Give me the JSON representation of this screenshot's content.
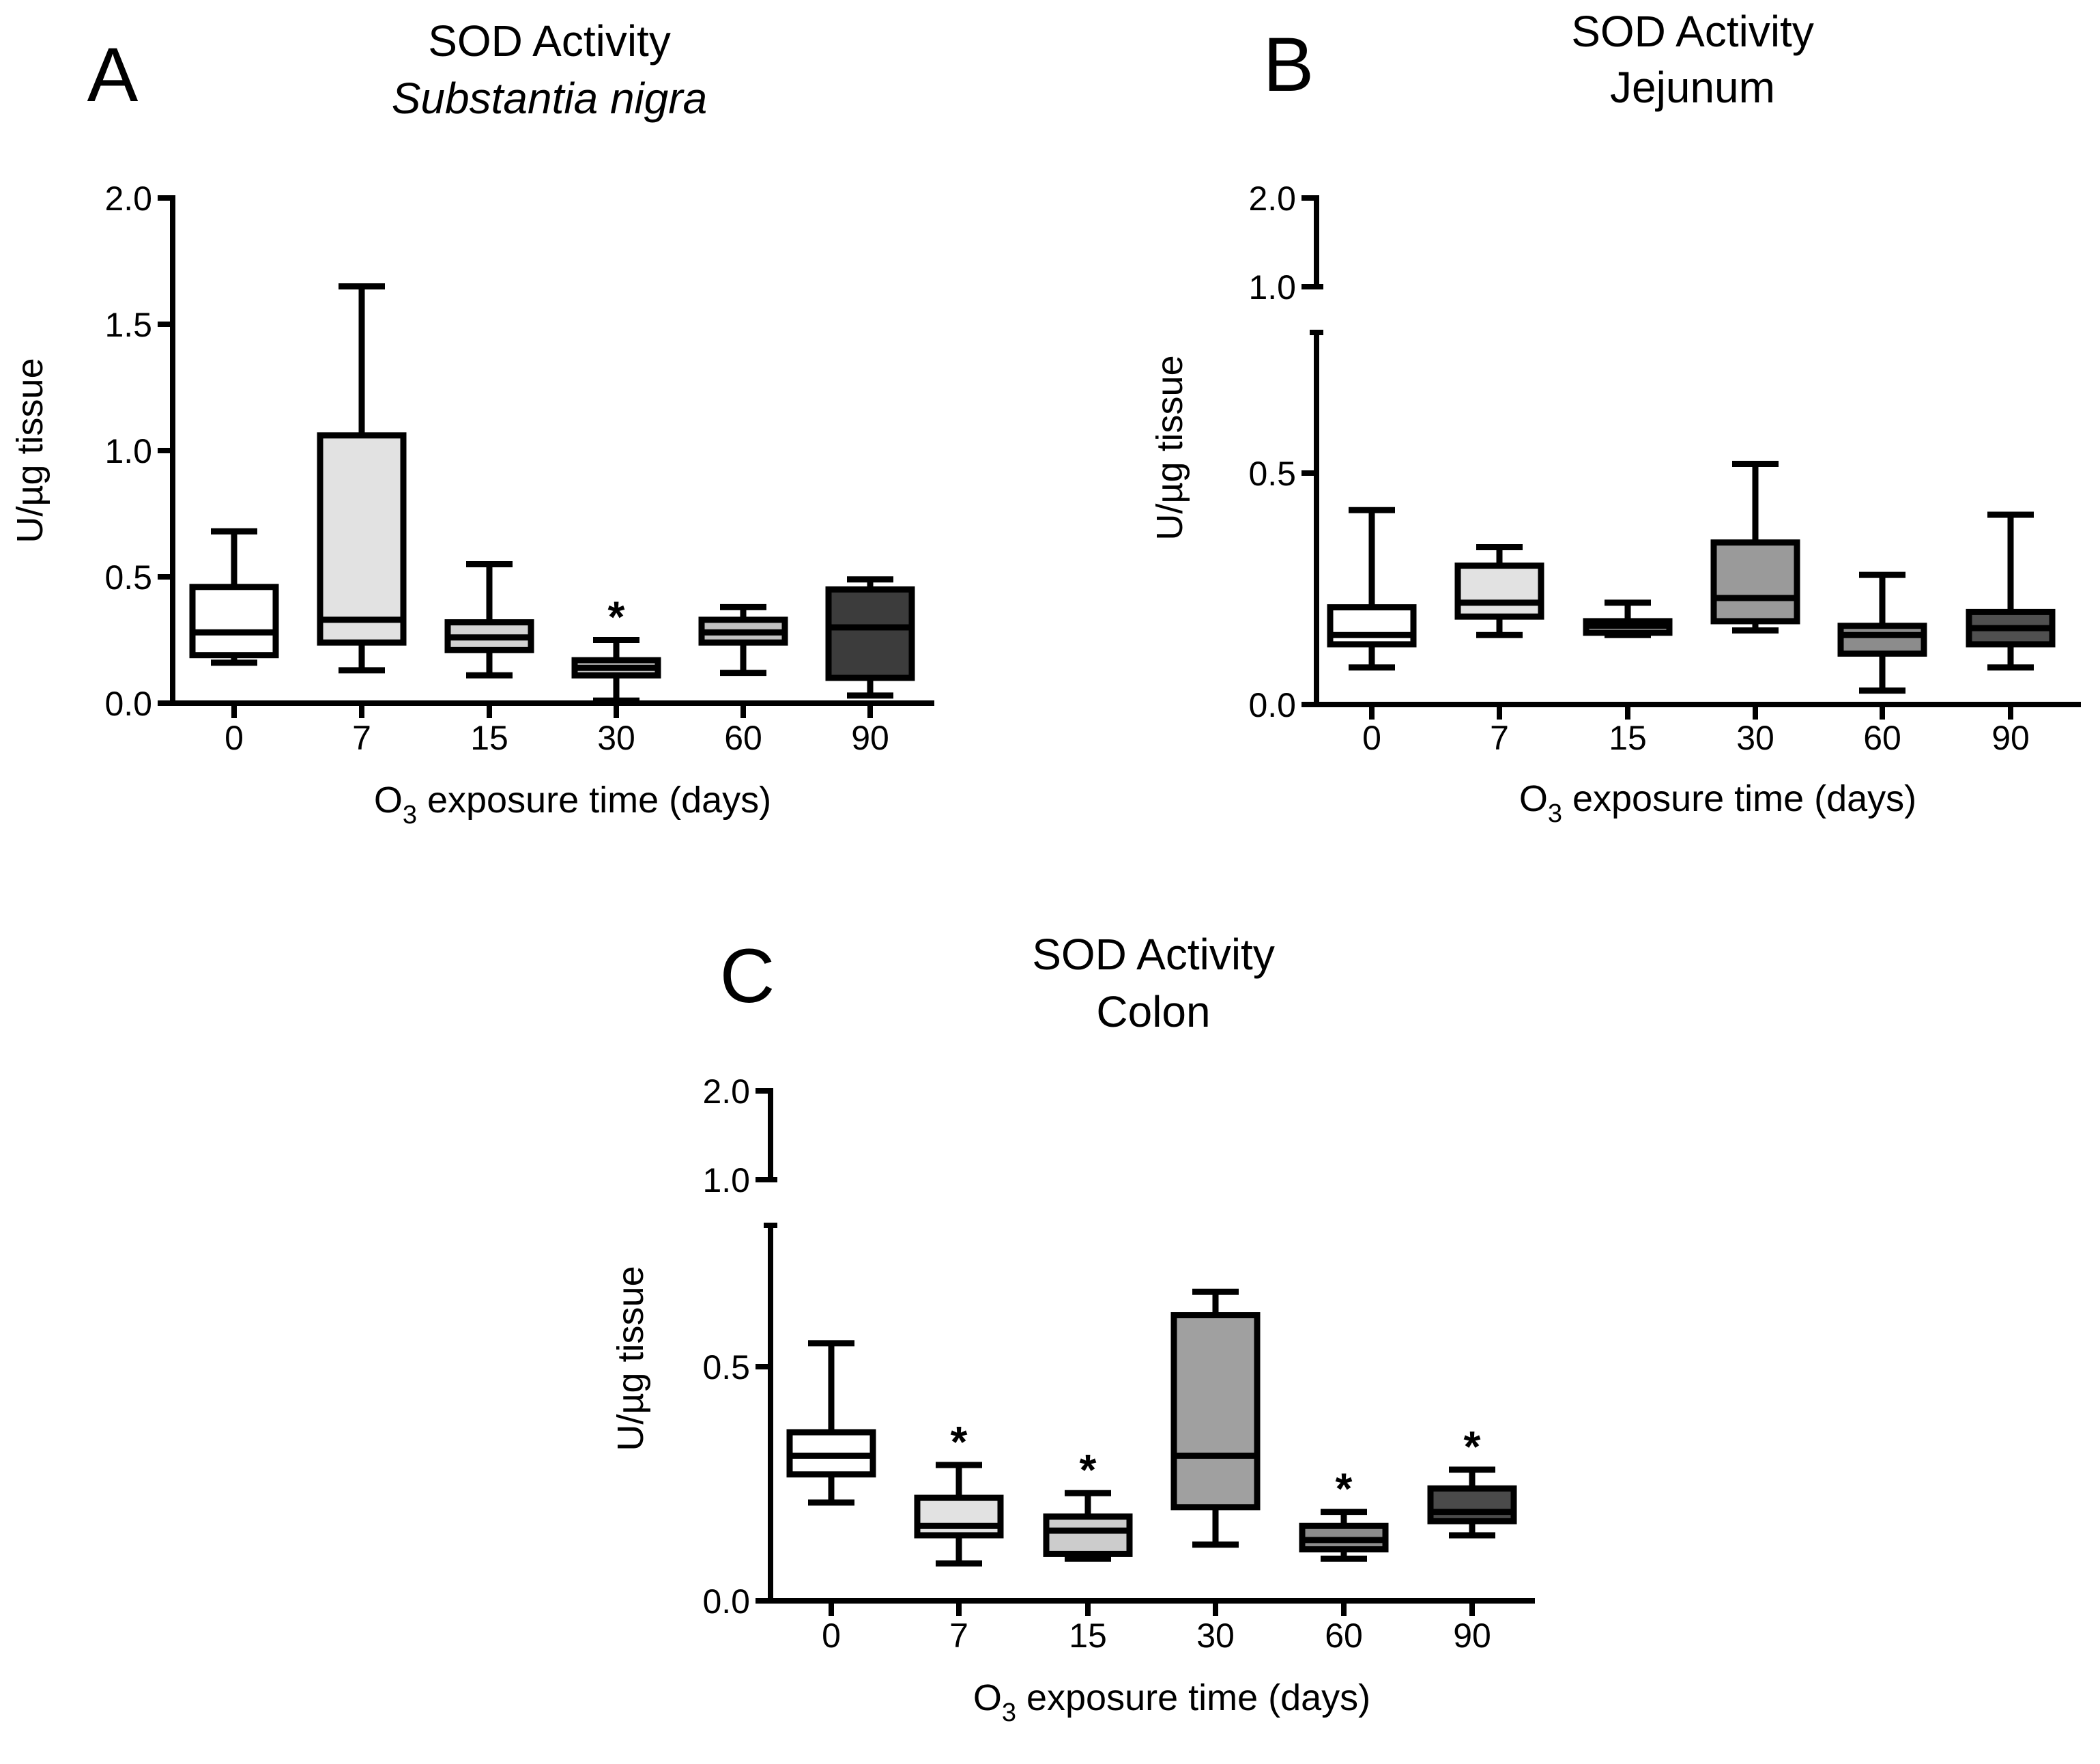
{
  "chart_data": [
    {
      "type": "box",
      "panel_label": "A",
      "title": "SOD Activity",
      "subtitle": "Substantia nigra",
      "subtitle_italic": true,
      "ylabel": "U/µg tissue",
      "xlabel_prefix": "O",
      "xlabel_sub": "3",
      "xlabel_suffix": " exposure time (days)",
      "categories": [
        "0",
        "7",
        "15",
        "30",
        "60",
        "90"
      ],
      "ylim": [
        0,
        2.0
      ],
      "yticks": [
        "0.0",
        "0.5",
        "1.0",
        "1.5",
        "2.0"
      ],
      "axis_break": false,
      "boxes": [
        {
          "min": 0.16,
          "q1": 0.19,
          "median": 0.28,
          "q3": 0.46,
          "max": 0.68,
          "fill": "#ffffff",
          "significant": false
        },
        {
          "min": 0.13,
          "q1": 0.24,
          "median": 0.33,
          "q3": 1.06,
          "max": 1.65,
          "fill": "#e2e2e2",
          "significant": false
        },
        {
          "min": 0.11,
          "q1": 0.21,
          "median": 0.26,
          "q3": 0.32,
          "max": 0.55,
          "fill": "#d2d2d2",
          "significant": false
        },
        {
          "min": 0.01,
          "q1": 0.11,
          "median": 0.14,
          "q3": 0.17,
          "max": 0.25,
          "fill": "#c6c6c6",
          "significant": true
        },
        {
          "min": 0.12,
          "q1": 0.24,
          "median": 0.28,
          "q3": 0.33,
          "max": 0.38,
          "fill": "#c2c2c2",
          "significant": false
        },
        {
          "min": 0.03,
          "q1": 0.1,
          "median": 0.3,
          "q3": 0.45,
          "max": 0.49,
          "fill": "#3c3c3c",
          "significant": false
        }
      ],
      "significance_marker": "*"
    },
    {
      "type": "box",
      "panel_label": "B",
      "title": "SOD Activity",
      "subtitle": "Jejunum",
      "subtitle_italic": false,
      "ylabel": "U/µg tissue",
      "xlabel_prefix": "O",
      "xlabel_sub": "3",
      "xlabel_suffix": " exposure time (days)",
      "categories": [
        "0",
        "7",
        "15",
        "30",
        "60",
        "90"
      ],
      "ylim": [
        0,
        0.8
      ],
      "yticks": [
        "0.0",
        "0.5"
      ],
      "axis_break": true,
      "break_ticks": [
        "1.0",
        "2.0"
      ],
      "boxes": [
        {
          "min": 0.08,
          "q1": 0.13,
          "median": 0.15,
          "q3": 0.21,
          "max": 0.42,
          "fill": "#ffffff",
          "significant": false
        },
        {
          "min": 0.15,
          "q1": 0.19,
          "median": 0.22,
          "q3": 0.3,
          "max": 0.34,
          "fill": "#e2e2e2",
          "significant": false
        },
        {
          "min": 0.15,
          "q1": 0.155,
          "median": 0.17,
          "q3": 0.18,
          "max": 0.22,
          "fill": "#d2d2d2",
          "significant": false
        },
        {
          "min": 0.16,
          "q1": 0.18,
          "median": 0.23,
          "q3": 0.35,
          "max": 0.52,
          "fill": "#9a9a9a",
          "significant": false
        },
        {
          "min": 0.03,
          "q1": 0.11,
          "median": 0.15,
          "q3": 0.17,
          "max": 0.28,
          "fill": "#8c8c8c",
          "significant": false
        },
        {
          "min": 0.08,
          "q1": 0.13,
          "median": 0.165,
          "q3": 0.2,
          "max": 0.41,
          "fill": "#505050",
          "significant": false
        }
      ],
      "significance_marker": "*"
    },
    {
      "type": "box",
      "panel_label": "C",
      "title": "SOD Activity",
      "subtitle": "Colon",
      "subtitle_italic": false,
      "ylabel": "U/µg tissue",
      "xlabel_prefix": "O",
      "xlabel_sub": "3",
      "xlabel_suffix": " exposure time (days)",
      "categories": [
        "0",
        "7",
        "15",
        "30",
        "60",
        "90"
      ],
      "ylim": [
        0,
        0.8
      ],
      "yticks": [
        "0.0",
        "0.5"
      ],
      "axis_break": true,
      "break_ticks": [
        "1.0",
        "2.0"
      ],
      "boxes": [
        {
          "min": 0.21,
          "q1": 0.27,
          "median": 0.31,
          "q3": 0.36,
          "max": 0.55,
          "fill": "#ffffff",
          "significant": false
        },
        {
          "min": 0.08,
          "q1": 0.14,
          "median": 0.16,
          "q3": 0.22,
          "max": 0.29,
          "fill": "#e2e2e2",
          "significant": true
        },
        {
          "min": 0.09,
          "q1": 0.1,
          "median": 0.15,
          "q3": 0.18,
          "max": 0.23,
          "fill": "#cccccc",
          "significant": true
        },
        {
          "min": 0.12,
          "q1": 0.2,
          "median": 0.31,
          "q3": 0.61,
          "max": 0.66,
          "fill": "#a0a0a0",
          "significant": false
        },
        {
          "min": 0.09,
          "q1": 0.11,
          "median": 0.13,
          "q3": 0.16,
          "max": 0.19,
          "fill": "#8c8c8c",
          "significant": true
        },
        {
          "min": 0.14,
          "q1": 0.17,
          "median": 0.19,
          "q3": 0.24,
          "max": 0.28,
          "fill": "#4a4a4a",
          "significant": true
        }
      ],
      "significance_marker": "*"
    }
  ]
}
